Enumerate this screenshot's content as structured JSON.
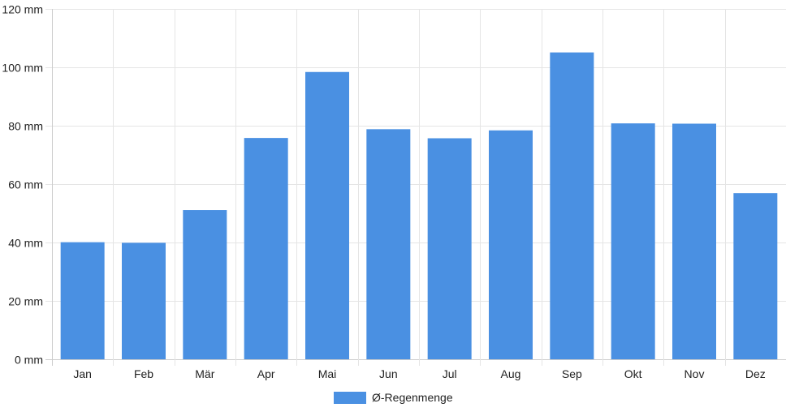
{
  "chart_data": {
    "type": "bar",
    "categories": [
      "Jan",
      "Feb",
      "Mär",
      "Apr",
      "Mai",
      "Jun",
      "Jul",
      "Aug",
      "Sep",
      "Okt",
      "Nov",
      "Dez"
    ],
    "series": [
      {
        "name": "Ø-Regenmenge",
        "values": [
          40.1,
          39.9,
          51.1,
          75.8,
          98.4,
          78.8,
          75.7,
          78.4,
          105.1,
          80.8,
          80.7,
          56.9
        ],
        "color": "#4a90e2"
      }
    ],
    "ylim": [
      0,
      120
    ],
    "yticks": [
      0,
      20,
      40,
      60,
      80,
      100,
      120
    ],
    "y_unit": "mm",
    "grid": true,
    "legend_position": "bottom"
  }
}
